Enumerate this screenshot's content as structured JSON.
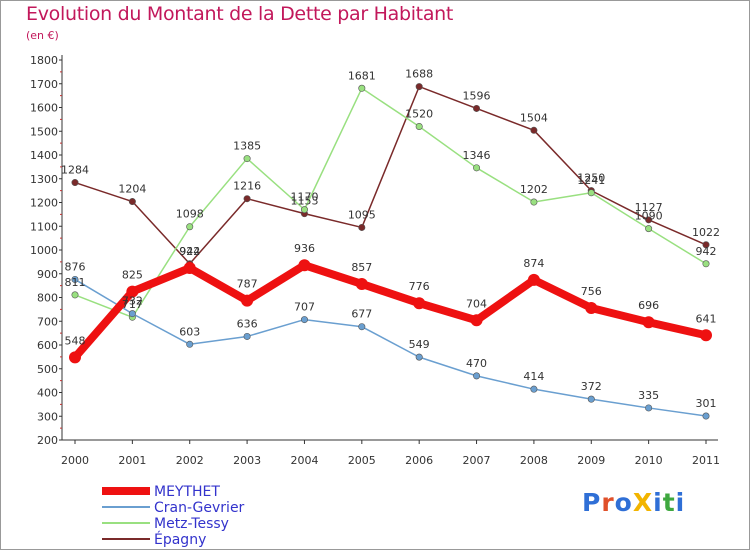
{
  "chart_data": {
    "type": "line",
    "title": "Evolution du Montant de la Dette par Habitant",
    "subtitle": "(en €)",
    "xlabel": "",
    "ylabel": "",
    "categories": [
      "2000",
      "2001",
      "2002",
      "2003",
      "2004",
      "2005",
      "2006",
      "2007",
      "2008",
      "2009",
      "2010",
      "2011"
    ],
    "ylim": [
      200,
      1800
    ],
    "yticks": [
      "200",
      "300",
      "400",
      "500",
      "600",
      "700",
      "800",
      "900",
      "1000",
      "1100",
      "1200",
      "1300",
      "1400",
      "1500",
      "1600",
      "1700",
      "1800"
    ],
    "grid": false,
    "legend_position": "bottom-left",
    "series": [
      {
        "name": "MEYTHET",
        "color": "#ee1111",
        "values": [
          548,
          825,
          924,
          787,
          936,
          857,
          776,
          704,
          874,
          756,
          696,
          641
        ]
      },
      {
        "name": "Cran-Gevrier",
        "color": "#6a9fd0",
        "values": [
          876,
          732,
          603,
          636,
          707,
          677,
          549,
          470,
          414,
          372,
          335,
          301
        ]
      },
      {
        "name": "Metz-Tessy",
        "color": "#99e080",
        "values": [
          811,
          717,
          1098,
          1385,
          1170,
          1681,
          1520,
          1346,
          1202,
          1241,
          1090,
          942
        ]
      },
      {
        "name": "Épagny",
        "color": "#7a2a2a",
        "values": [
          1284,
          1204,
          942,
          1216,
          1153,
          1095,
          1688,
          1596,
          1504,
          1250,
          1127,
          1022
        ]
      }
    ]
  },
  "logo": {
    "text": "ProXiti",
    "colors": [
      "#2f6fd6",
      "#e0502a",
      "#2f6fd6",
      "#f2b400",
      "#2f6fd6",
      "#3fa83f"
    ]
  }
}
